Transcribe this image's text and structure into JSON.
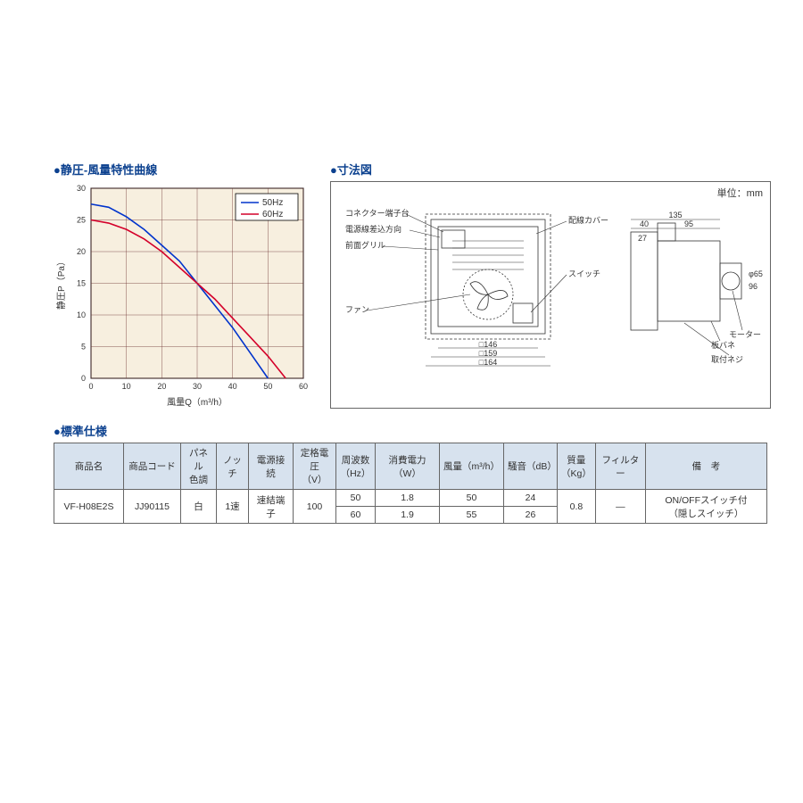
{
  "chart": {
    "title": "静圧-風量特性曲線",
    "type": "line",
    "xlabel": "風量Q（m³/h）",
    "ylabel": "静圧P（Pa）",
    "xlim": [
      0,
      60
    ],
    "ylim": [
      0,
      30
    ],
    "xtick_step": 10,
    "ytick_step": 5,
    "xticks": [
      "0",
      "10",
      "20",
      "30",
      "40",
      "50",
      "60"
    ],
    "yticks": [
      "0",
      "5",
      "10",
      "15",
      "20",
      "25",
      "30"
    ],
    "background_color": "#f7efdf",
    "grid_color": "#6b2e2e",
    "axis_color": "#000000",
    "label_fontsize": 10,
    "tick_fontsize": 9,
    "legend": {
      "items": [
        "50Hz",
        "60Hz"
      ],
      "border_color": "#000000",
      "bg": "#ffffff"
    },
    "series": [
      {
        "name": "50Hz",
        "color": "#0033cc",
        "width": 1.6,
        "points": [
          [
            0,
            27.5
          ],
          [
            5,
            27
          ],
          [
            10,
            25.5
          ],
          [
            15,
            23.5
          ],
          [
            20,
            21
          ],
          [
            25,
            18.5
          ],
          [
            30,
            15
          ],
          [
            35,
            11.5
          ],
          [
            40,
            8
          ],
          [
            45,
            4
          ],
          [
            50,
            0
          ]
        ]
      },
      {
        "name": "60Hz",
        "color": "#d4002a",
        "width": 1.6,
        "points": [
          [
            0,
            25
          ],
          [
            5,
            24.5
          ],
          [
            10,
            23.5
          ],
          [
            15,
            22
          ],
          [
            20,
            20
          ],
          [
            25,
            17.5
          ],
          [
            30,
            15
          ],
          [
            35,
            12.5
          ],
          [
            40,
            9.5
          ],
          [
            45,
            6.5
          ],
          [
            50,
            3.5
          ],
          [
            55,
            0
          ]
        ]
      }
    ]
  },
  "diagram": {
    "title": "寸法図",
    "unit_label": "単位：mm",
    "front": {
      "labels": {
        "connector": "コネクター端子台",
        "power_dir": "電源線差込方向",
        "grill": "前面グリル",
        "fan": "ファン",
        "cover": "配線カバー",
        "switch": "スイッチ"
      },
      "dims": {
        "w146": "□146",
        "w159": "□159",
        "w164": "□164"
      }
    },
    "side": {
      "labels": {
        "spring": "板バネ",
        "motor": "モーター",
        "screw": "取付ネジ"
      },
      "dims": {
        "d135": "135",
        "d40": "40",
        "d95": "95",
        "d27": "27",
        "phi65": "φ65",
        "h96": "96"
      }
    }
  },
  "spec": {
    "title": "標準仕様",
    "headers": {
      "name": "商品名",
      "code": "商品コード",
      "panel": "パネル\n色調",
      "notch": "ノッチ",
      "conn": "電源接続",
      "voltage": "定格電圧\n（V）",
      "freq": "周波数\n（Hz）",
      "power": "消費電力（W）",
      "airflow": "風量（m³/h）",
      "noise": "騒音（dB）",
      "mass": "質量\n（Kg）",
      "filter": "フィルター",
      "remark": "備　考"
    },
    "row": {
      "name": "VF-H08E2S",
      "code": "JJ90115",
      "panel": "白",
      "notch": "1速",
      "conn": "速結端子",
      "voltage": "100",
      "freq50": "50",
      "freq60": "60",
      "power50": "1.8",
      "power60": "1.9",
      "airflow50": "50",
      "airflow60": "55",
      "noise50": "24",
      "noise60": "26",
      "mass": "0.8",
      "filter": "―",
      "remark": "ON/OFFスイッチ付\n（隠しスイッチ）"
    }
  }
}
